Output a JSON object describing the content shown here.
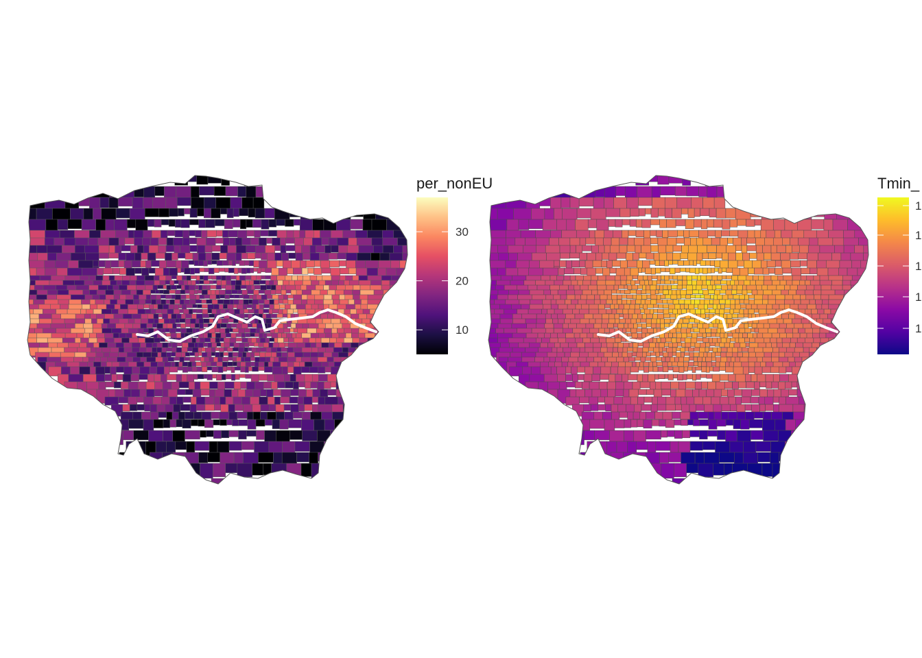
{
  "maps": [
    {
      "variable": "per_nonEU",
      "legend": {
        "title": "per_nonEU",
        "ticks": [
          "10",
          "20",
          "30"
        ],
        "palette": "magma",
        "range": [
          5,
          37
        ],
        "colors": [
          "#000004",
          "#1c1044",
          "#4f127b",
          "#812581",
          "#b5367a",
          "#e55064",
          "#fb8761",
          "#fec287",
          "#fcfdbf"
        ]
      }
    },
    {
      "variable": "Tmin_",
      "legend": {
        "title": "Tmin_",
        "ticks": [
          "1",
          "1",
          "1",
          "1",
          "1"
        ],
        "palette": "plasma",
        "colors": [
          "#0d0887",
          "#5302a3",
          "#8b0aa5",
          "#b83289",
          "#db5c68",
          "#f48849",
          "#febd2a",
          "#f0f921"
        ]
      }
    }
  ],
  "river": {
    "name": "River Thames",
    "color": "#ffffff"
  },
  "boundary_color": "#555555"
}
